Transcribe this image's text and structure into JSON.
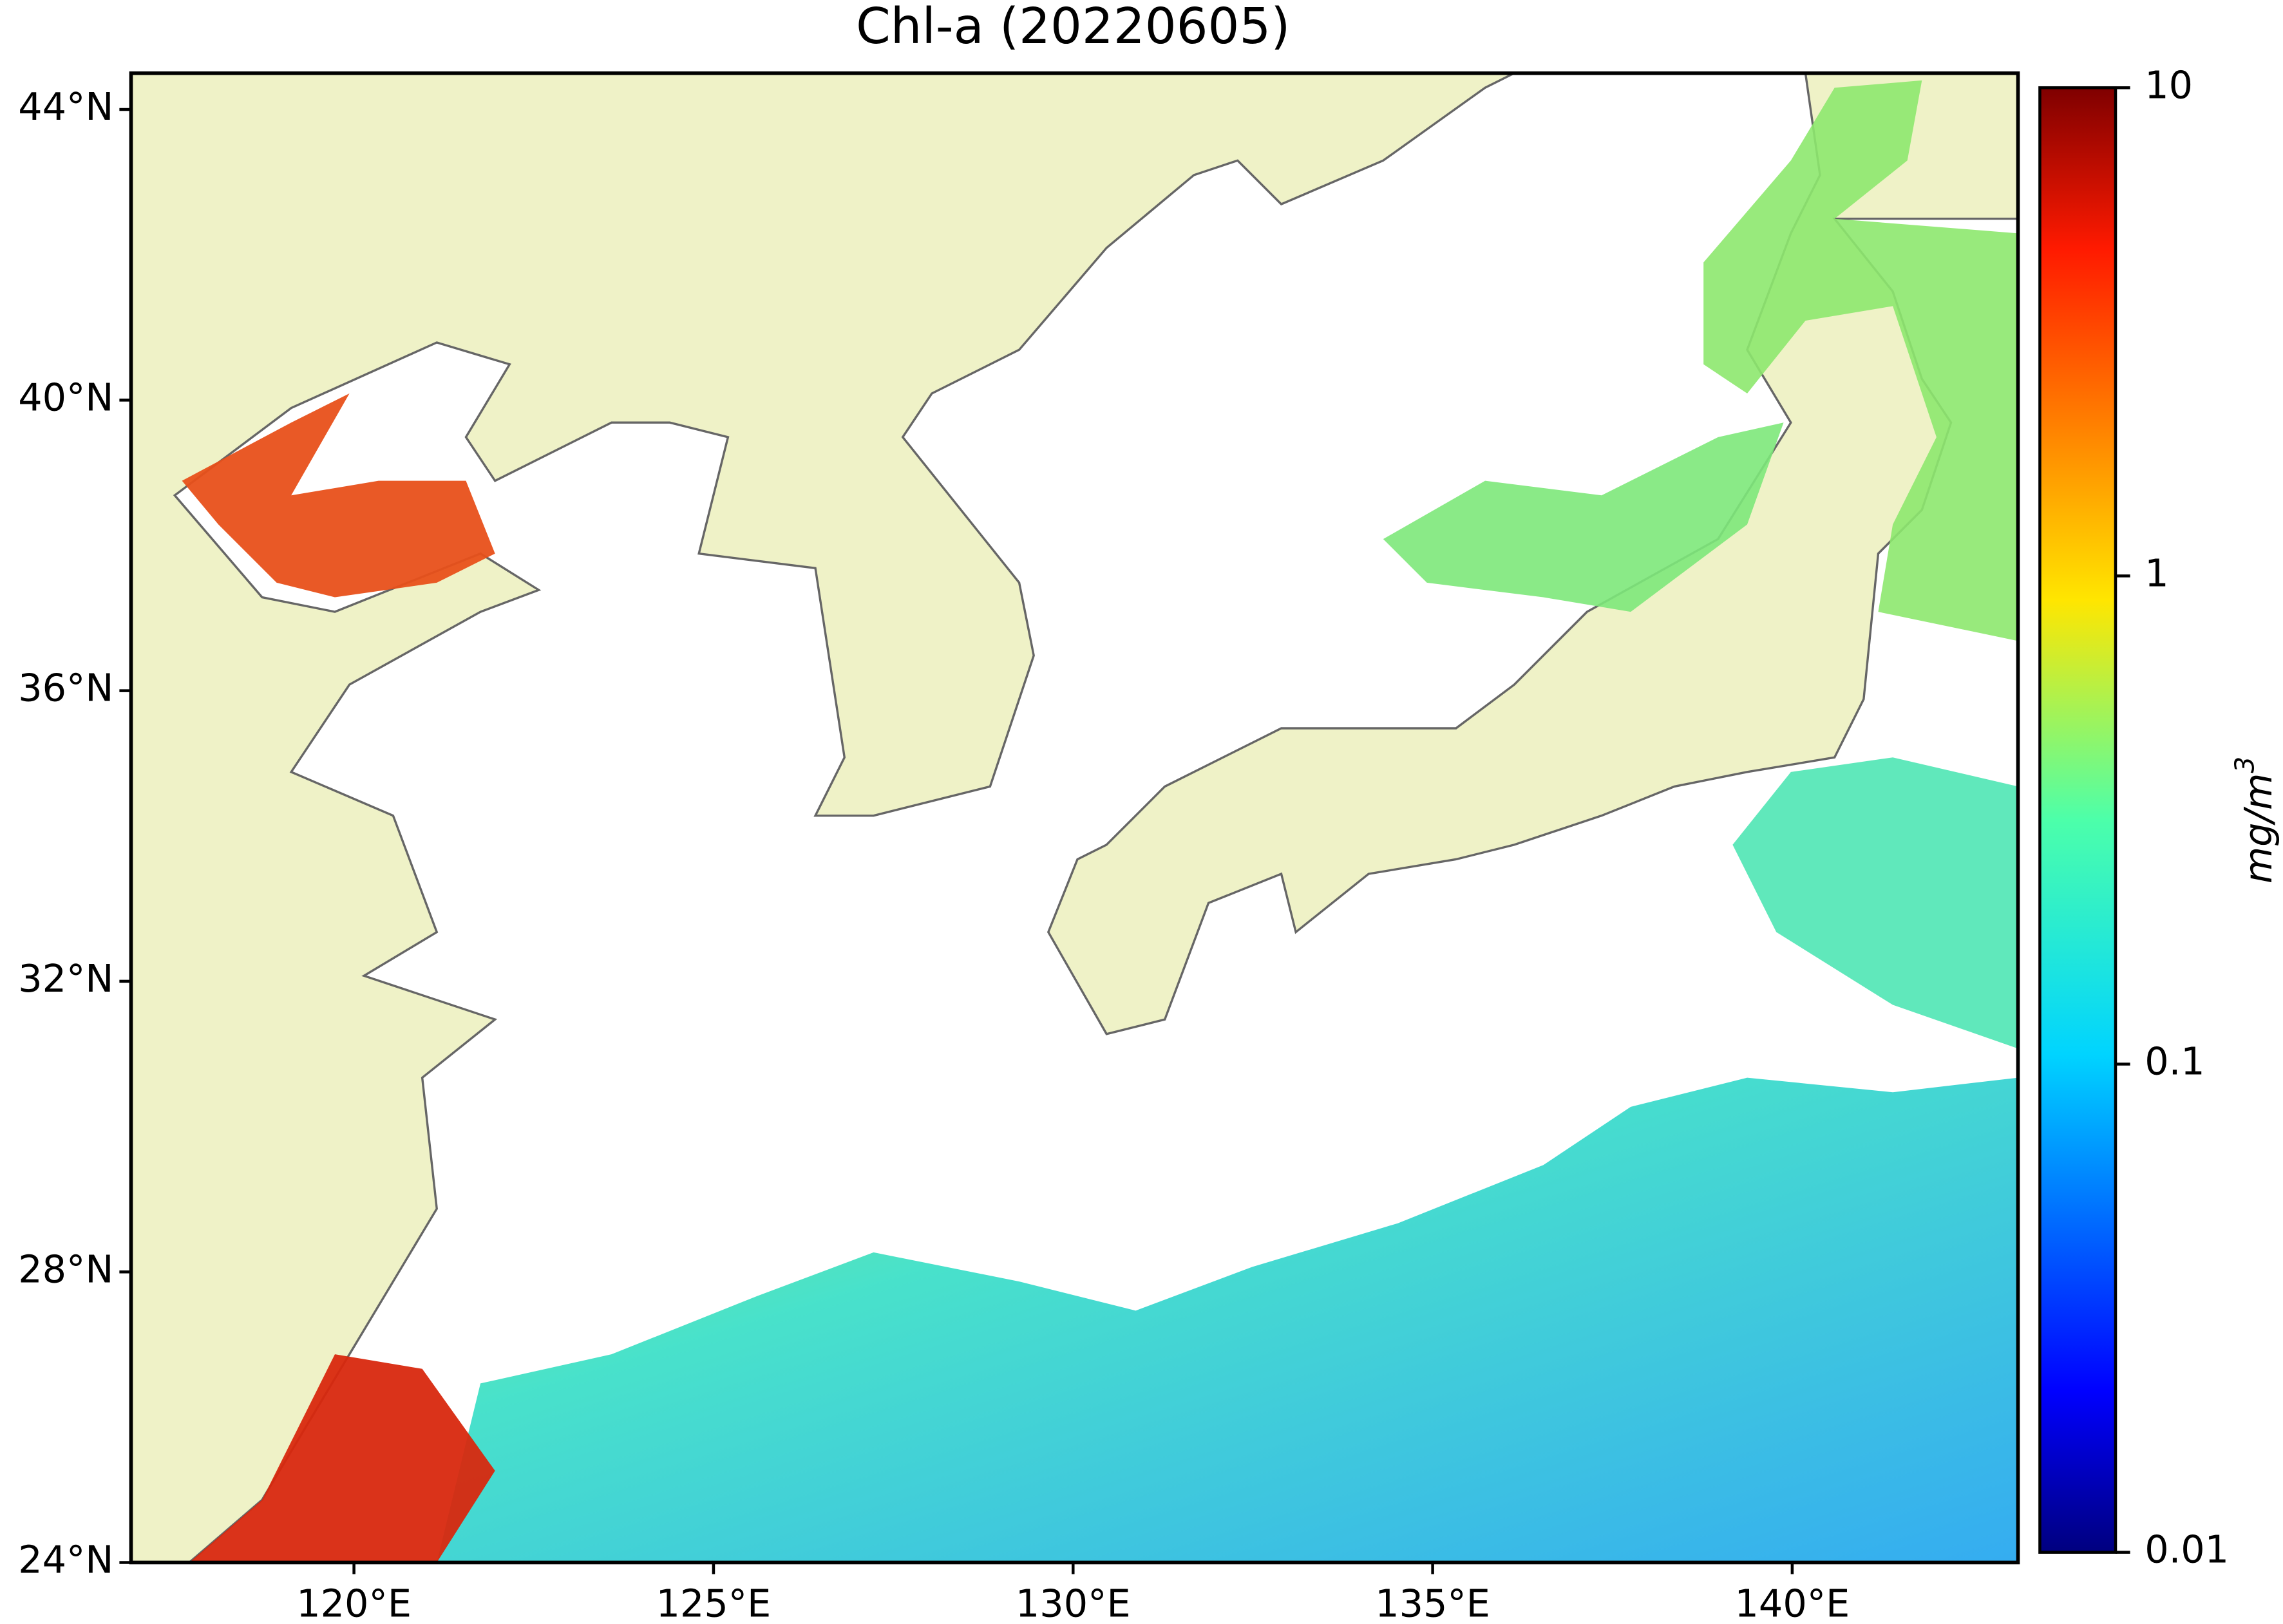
{
  "chart_data": {
    "type": "map",
    "title": "Chl-a (20220605)",
    "xlim": [
      116.9,
      143.14
    ],
    "ylim": [
      24,
      44.5
    ],
    "xticks": [
      {
        "value": 120,
        "label": "120°E"
      },
      {
        "value": 125,
        "label": "125°E"
      },
      {
        "value": 130,
        "label": "130°E"
      },
      {
        "value": 135,
        "label": "135°E"
      },
      {
        "value": 140,
        "label": "140°E"
      }
    ],
    "yticks": [
      {
        "value": 24,
        "label": "24°N"
      },
      {
        "value": 28,
        "label": "28°N"
      },
      {
        "value": 32,
        "label": "32°N"
      },
      {
        "value": 36,
        "label": "36°N"
      },
      {
        "value": 40,
        "label": "40°N"
      },
      {
        "value": 44,
        "label": "44°N"
      }
    ],
    "colorbar": {
      "log_scale": true,
      "lim": [
        0.01,
        10
      ],
      "ticks": [
        0.01,
        0.1,
        1,
        10
      ],
      "label": {
        "base": "mg/m",
        "exponent": "3"
      }
    }
  }
}
